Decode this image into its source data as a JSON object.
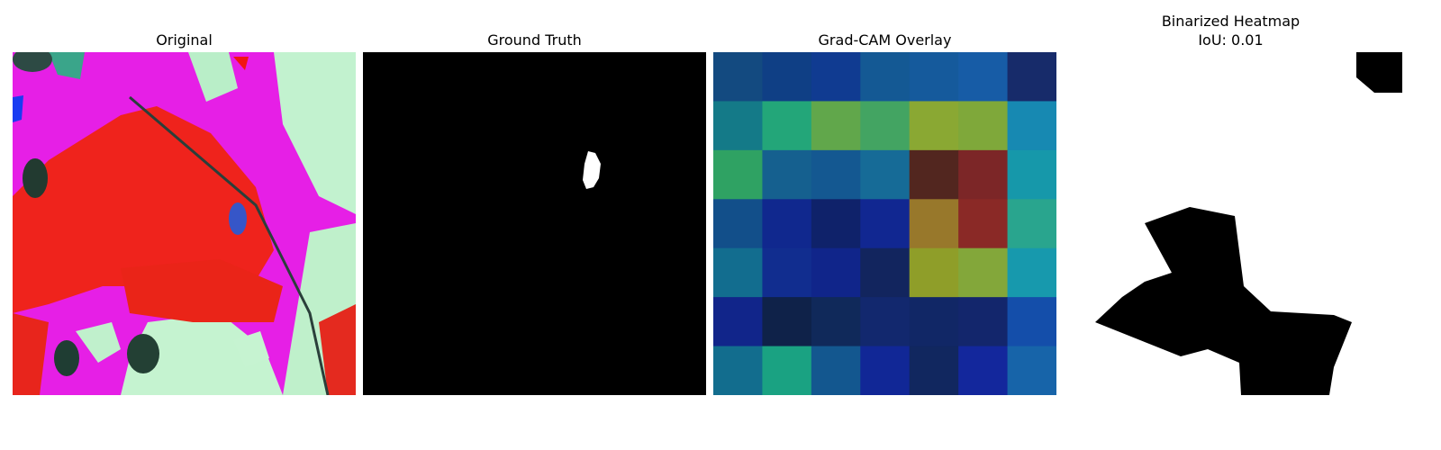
{
  "panels": {
    "original": {
      "title": "Original"
    },
    "ground_truth": {
      "title": "Ground Truth"
    },
    "gradcam": {
      "title": "Grad-CAM Overlay",
      "grid": [
        [
          "#134a80",
          "#0f3f85",
          "#103b91",
          "#145994",
          "#155a9c",
          "#175ca6",
          "#172b6a"
        ],
        [
          "#147a88",
          "#23a679",
          "#61a74b",
          "#43a462",
          "#8aa833",
          "#7fa83a",
          "#1789b2"
        ],
        [
          "#2fa263",
          "#15608f",
          "#145891",
          "#166b97",
          "#52261f",
          "#7c2627",
          "#1698aa"
        ],
        [
          "#124f8a",
          "#10288e",
          "#0f226a",
          "#112791",
          "#98782b",
          "#8a2926",
          "#29a58e"
        ],
        [
          "#126d8f",
          "#112d8f",
          "#10258a",
          "#12255e",
          "#8f9e29",
          "#83a73a",
          "#1799ad"
        ],
        [
          "#11258a",
          "#0f2249",
          "#10295a",
          "#12286e",
          "#112766",
          "#13266c",
          "#144eaa"
        ],
        [
          "#126d8e",
          "#1aa282",
          "#13578f",
          "#112796",
          "#11275f",
          "#13279c",
          "#1764a9"
        ]
      ]
    },
    "binarized": {
      "title_line1": "Binarized Heatmap",
      "title_line2": "IoU: 0.01"
    }
  }
}
